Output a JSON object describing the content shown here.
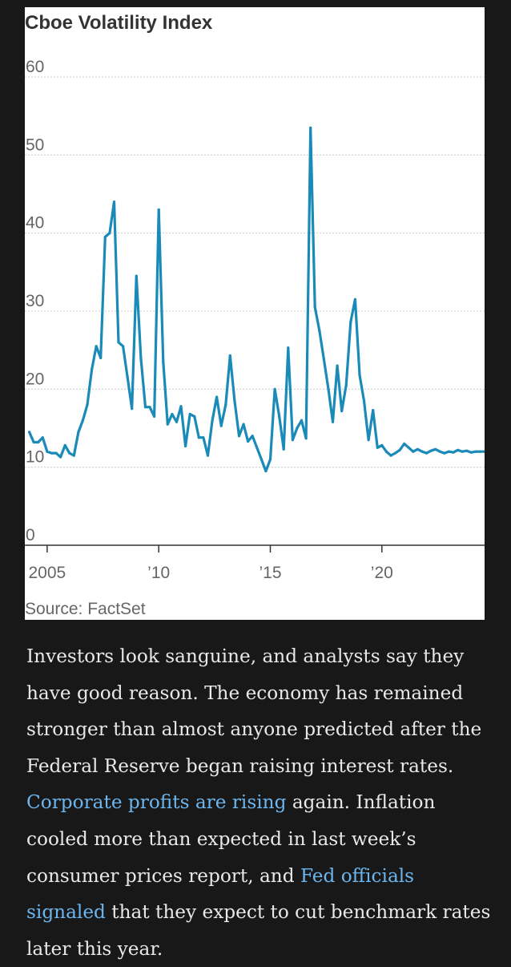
{
  "chart_data": {
    "type": "line",
    "title": "Cboe Volatility Index",
    "source": "Source: FactSet",
    "xlabel": "",
    "ylabel": "",
    "ylim": [
      0,
      60
    ],
    "yticks": [
      0,
      10,
      20,
      30,
      40,
      50,
      60
    ],
    "ytick_labels": [
      "0",
      "10",
      "20",
      "30",
      "40",
      "50",
      "60"
    ],
    "xlim": [
      2004.0,
      2024.6
    ],
    "xticks": [
      2005,
      2010,
      2015,
      2020
    ],
    "xtick_labels": [
      "2005",
      "’10",
      "’15",
      "’20"
    ],
    "grid": true,
    "line_color": "#1a8ab8",
    "series": [
      {
        "name": "Cboe Volatility Index",
        "x": [
          2004.2,
          2004.4,
          2004.6,
          2004.8,
          2005.0,
          2005.2,
          2005.4,
          2005.6,
          2005.8,
          2006.0,
          2006.2,
          2006.4,
          2006.6,
          2006.8,
          2007.0,
          2007.2,
          2007.4,
          2007.6,
          2007.8,
          2008.0,
          2008.2,
          2008.4,
          2008.6,
          2008.8,
          2009.0,
          2009.2,
          2009.4,
          2009.6,
          2009.8,
          2010.0,
          2010.2,
          2010.4,
          2010.6,
          2010.8,
          2011.0,
          2011.2,
          2011.4,
          2011.6,
          2011.8,
          2012.0,
          2012.2,
          2012.4,
          2012.6,
          2012.8,
          2013.0,
          2013.2,
          2013.4,
          2013.6,
          2013.8,
          2014.0,
          2014.2,
          2014.4,
          2014.6,
          2014.8,
          2015.0,
          2015.2,
          2015.4,
          2015.6,
          2015.8,
          2016.0,
          2016.2,
          2016.4,
          2016.6,
          2016.8,
          2017.0,
          2017.2,
          2017.4,
          2017.6,
          2017.8,
          2018.0,
          2018.2,
          2018.4,
          2018.6,
          2018.8,
          2019.0,
          2019.2,
          2019.4,
          2019.6,
          2019.8,
          2020.0,
          2020.2,
          2020.4,
          2020.6,
          2020.8,
          2021.0,
          2021.2,
          2021.4,
          2021.6,
          2021.8,
          2022.0,
          2022.2,
          2022.4,
          2022.6,
          2022.8,
          2023.0,
          2023.2,
          2023.4,
          2023.6,
          2023.8,
          2024.0,
          2024.2,
          2024.4,
          2024.6
        ],
        "values": [
          14.5,
          13.2,
          13.2,
          13.8,
          12.0,
          11.8,
          11.8,
          11.3,
          12.8,
          11.8,
          11.5,
          14.5,
          16.0,
          18.0,
          22.5,
          25.5,
          24.0,
          39.5,
          40.0,
          44.0,
          26.0,
          25.5,
          21.5,
          17.5,
          34.5,
          24.0,
          17.7,
          17.7,
          16.5,
          43.0,
          23.5,
          15.5,
          16.8,
          15.8,
          17.8,
          12.7,
          16.8,
          16.5,
          13.8,
          13.8,
          11.5,
          16.0,
          19.0,
          15.3,
          18.0,
          24.3,
          18.5,
          14.0,
          15.5,
          13.3,
          14.0,
          12.5,
          11.0,
          9.5,
          11.0,
          20.0,
          16.5,
          12.3,
          25.3,
          13.5,
          15.0,
          16.0,
          13.7,
          53.5,
          30.5,
          27.5,
          23.8,
          20.0,
          15.8,
          23.0,
          17.2,
          20.5,
          28.6,
          31.5,
          21.8,
          18.5,
          13.5,
          17.3,
          12.5,
          12.8,
          12.0,
          11.5,
          11.8,
          12.2,
          13.0,
          12.5,
          12.0,
          12.3,
          12.0,
          11.8,
          12.1,
          12.3,
          12.0,
          11.8,
          12.0,
          11.9,
          12.2,
          12.0,
          12.1,
          11.9,
          12.0,
          12.0,
          12.0
        ]
      }
    ]
  },
  "article": {
    "text_1": "Investors look sanguine, and analysts say they have good reason. The economy has remained stronger than almost anyone predicted after the Federal Reserve began raising interest rates. ",
    "link_1": "Corporate profits are rising",
    "text_2": " again. Inflation cooled more than expected in last week’s consumer prices report, and ",
    "link_2": "Fed officials signaled",
    "text_3": " that they expect to cut benchmark rates later this year."
  },
  "colors": {
    "page_background": "#181818",
    "card_background": "#ffffff",
    "line": "#1a8ab8",
    "gridline": "#cccccc",
    "axis": "#333333",
    "link": "#6cb6f0",
    "body_text": "#e8e8e8"
  }
}
